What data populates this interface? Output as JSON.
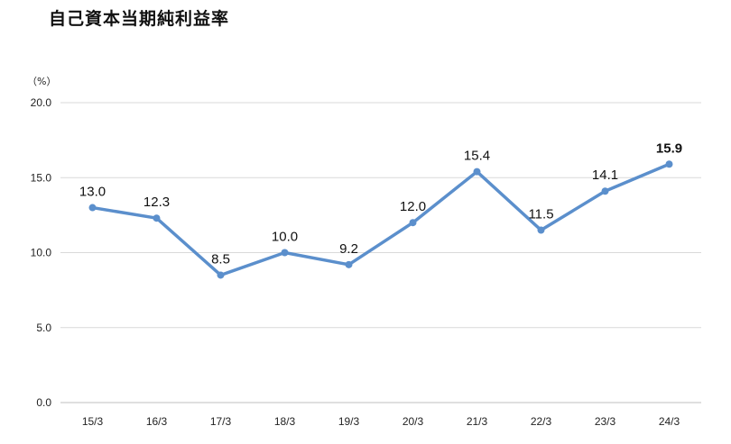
{
  "title": "自己資本当期純利益率",
  "chart_data": {
    "type": "line",
    "title": "自己資本当期純利益率",
    "unit_label": "（%）",
    "categories": [
      "15/3",
      "16/3",
      "17/3",
      "18/3",
      "19/3",
      "20/3",
      "21/3",
      "22/3",
      "23/3",
      "24/3"
    ],
    "series": [
      {
        "values": [
          13.0,
          12.3,
          8.5,
          10.0,
          9.2,
          12.0,
          15.4,
          11.5,
          14.1,
          15.9
        ],
        "labels": [
          "13.0",
          "12.3",
          "8.5",
          "10.0",
          "9.2",
          "12.0",
          "15.4",
          "11.5",
          "14.1",
          "15.9"
        ],
        "color": "#5b8fcc"
      }
    ],
    "highlight_last_label": true,
    "ylim": [
      0,
      20
    ],
    "yticks": [
      "0.0",
      "5.0",
      "10.0",
      "15.0",
      "20.0"
    ],
    "grid": true
  }
}
